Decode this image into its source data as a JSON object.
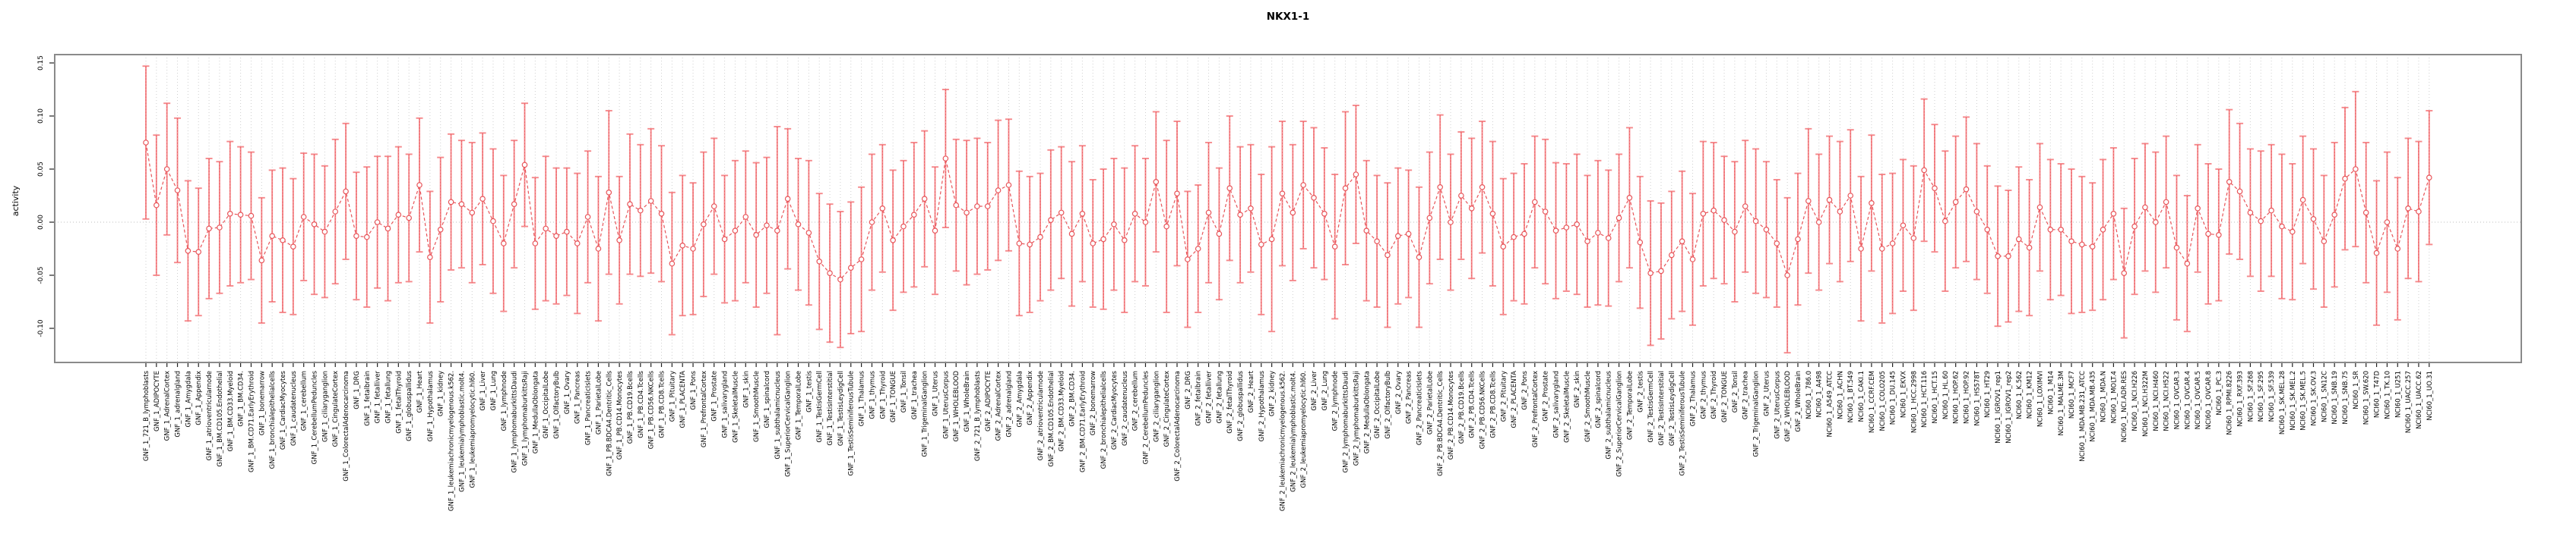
{
  "chart_data": {
    "type": "line",
    "subtype": "point-estimates-with-error-bars",
    "title": "NKX1-1",
    "ylabel": "activity",
    "xlabel": "",
    "ylim": [
      -0.132,
      0.158
    ],
    "yticks": [
      0.15,
      0.1,
      0.05,
      0.0,
      -0.05,
      -0.1
    ],
    "ytick_labels": [
      "0.15",
      "0.10",
      "0.05",
      "0.00",
      "-0.05",
      "-0.10"
    ],
    "grid": "dotted vertical line per category; dotted horizontal line at y=0",
    "legend_position": "none",
    "colors": {
      "error_bar": "#f5898c",
      "error_bar_dash_overlay": "#e8555a",
      "series_line": "#e8555a",
      "marker_stroke": "#e8555a",
      "marker_fill": "#ffffff",
      "gridline": "#cfcfcf",
      "zero_line": "#bdbdbd",
      "plot_border": "#8a8a8a",
      "axis_tick": "#222222",
      "text": "#000000",
      "background": "#ffffff"
    },
    "categories": [
      "GNF_1_721_B_lymphoblasts",
      "GNF_1_ADIPOCYTE",
      "GNF_1_AdrenalCortex",
      "GNF_1_adrenalgland",
      "GNF_1_Amygdala",
      "GNF_1_Appendix",
      "GNF_1_atrioventricularnode",
      "GNF_1_BM.CD105.Endothelial",
      "GNF_1_BM.CD33.Myeloid",
      "GNF_1_BM.CD34.",
      "GNF_1_BM.CD71.EarlyErythroid",
      "GNF_1_bonemarrow",
      "GNF_1_bronchialepithelialcells",
      "GNF_1_CardiacMyocytes",
      "GNF_1_caudatenucleus",
      "GNF_1_cerebellum",
      "GNF_1_CerebellumPeduncles",
      "GNF_1_ciliaryganglion",
      "GNF_1_CingulateCortex",
      "GNF_1_ColorectalAdenocarcinoma",
      "GNF_1_DRG",
      "GNF_1_fetalbrain",
      "GNF_1_fetalliver",
      "GNF_1_fetallung",
      "GNF_1_fetalThyroid",
      "GNF_1_globuspallidus",
      "GNF_1_Heart",
      "GNF_1_Hypothalamus",
      "GNF_1_kidney",
      "GNF_1_leukemiachronicmyelogenous.k562.",
      "GNF_1_leukemialymphoblastic.molt4.",
      "GNF_1_leukemiapromyelocytic.hl60.",
      "GNF_1_Liver",
      "GNF_1_Lung",
      "GNF_1_lymphnode",
      "GNF_1_lymphomaburkittsDaudi",
      "GNF_1_lymphomaburkittsRaji",
      "GNF_1_MedullaOblongata",
      "GNF_1_OccipitalLobe",
      "GNF_1_OlfactoryBulb",
      "GNF_1_Ovary",
      "GNF_1_Pancreas",
      "GNF_1_PancreaticIslets",
      "GNF_1_ParietalLobe",
      "GNF_1_PB.BDCA4.Dentritic_Cells",
      "GNF_1_PB.CD14.Monocytes",
      "GNF_1_PB.CD19.Bcells",
      "GNF_1_PB.CD4.Tcells",
      "GNF_1_PB.CD56.NKCells",
      "GNF_1_PB.CD8.Tcells",
      "GNF_1_Pituitary",
      "GNF_1_PLACENTA",
      "GNF_1_Pons",
      "GNF_1_PrefrontalCortex",
      "GNF_1_Prostate",
      "GNF_1_salivarygland",
      "GNF_1_SkeletalMuscle",
      "GNF_1_skin",
      "GNF_1_SmoothMuscle",
      "GNF_1_spinalcord",
      "GNF_1_subthalamicnucleus",
      "GNF_1_SuperiorCervicalGanglion",
      "GNF_1_TemporalLobe",
      "GNF_1_testis",
      "GNF_1_TestisGermCell",
      "GNF_1_TestisInterstitial",
      "GNF_1_TestisLeydigCell",
      "GNF_1_TestisSeminiferousTubule",
      "GNF_1_Thalamus",
      "GNF_1_thymus",
      "GNF_1_Thyroid",
      "GNF_1_TONGUE",
      "GNF_1_Tonsil",
      "GNF_1_trachea",
      "GNF_1_TrigeminalGanglion",
      "GNF_1_Uterus",
      "GNF_1_UterusCorpus",
      "GNF_1_WHOLEBLOOD",
      "GNF_1_WholeBrain",
      "GNF_2_721_B_lymphoblasts",
      "GNF_2_ADIPOCYTE",
      "GNF_2_AdrenalCortex",
      "GNF_2_adrenalgland",
      "GNF_2_Amygdala",
      "GNF_2_Appendix",
      "GNF_2_atrioventricularnode",
      "GNF_2_BM.CD105.Endothelial",
      "GNF_2_BM.CD33.Myeloid",
      "GNF_2_BM.CD34.",
      "GNF_2_BM.CD71.EarlyErythroid",
      "GNF_2_bonemarrow",
      "GNF_2_bronchialepithelialcells",
      "GNF_2_CardiacMyocytes",
      "GNF_2_caudatenucleus",
      "GNF_2_cerebellum",
      "GNF_2_CerebellumPeduncles",
      "GNF_2_ciliaryganglion",
      "GNF_2_CingulateCortex",
      "GNF_2_ColorectalAdenocarcinoma",
      "GNF_2_DRG",
      "GNF_2_fetalbrain",
      "GNF_2_fetalliver",
      "GNF_2_fetallung",
      "GNF_2_fetalThyroid",
      "GNF_2_globuspallidus",
      "GNF_2_Heart",
      "GNF_2_Hypothalamus",
      "GNF_2_kidney",
      "GNF_2_leukemiachronicmyelogenous.k562.",
      "GNF_2_leukemialymphoblastic.molt4.",
      "GNF_2_leukemiapromyelocytic.hl60.",
      "GNF_2_Liver",
      "GNF_2_Lung",
      "GNF_2_lymphnode",
      "GNF_2_lymphomaburkittsDaudi",
      "GNF_2_lymphomaburkittsRaji",
      "GNF_2_MedullaOblongata",
      "GNF_2_OccipitalLobe",
      "GNF_2_OlfactoryBulb",
      "GNF_2_Ovary",
      "GNF_2_Pancreas",
      "GNF_2_PancreaticIslets",
      "GNF_2_ParietalLobe",
      "GNF_2_PB.BDCA4.Dentritic_Cells",
      "GNF_2_PB.CD14.Monocytes",
      "GNF_2_PB.CD19.Bcells",
      "GNF_2_PB.CD4.Tcells",
      "GNF_2_PB.CD56.NKCells",
      "GNF_2_PB.CD8.Tcells",
      "GNF_2_Pituitary",
      "GNF_2_PLACENTA",
      "GNF_2_Pons",
      "GNF_2_PrefrontalCortex",
      "GNF_2_Prostate",
      "GNF_2_salivarygland",
      "GNF_2_SkeletalMuscle",
      "GNF_2_skin",
      "GNF_2_SmoothMuscle",
      "GNF_2_spinalcord",
      "GNF_2_subthalamicnucleus",
      "GNF_2_SuperiorCervicalGanglion",
      "GNF_2_TemporalLobe",
      "GNF_2_testis",
      "GNF_2_TestisGermCell",
      "GNF_2_TestisInterstitial",
      "GNF_2_TestisLeydigCell",
      "GNF_2_TestisSeminiferousTubule",
      "GNF_2_Thalamus",
      "GNF_2_thymus",
      "GNF_2_Thyroid",
      "GNF_2_TONGUE",
      "GNF_2_Tonsil",
      "GNF_2_trachea",
      "GNF_2_TrigeminalGanglion",
      "GNF_2_Uterus",
      "GNF_2_UterusCorpus",
      "GNF_2_WHOLEBLOOD",
      "GNF_2_WholeBrain",
      "NCI60_1_786.0",
      "NCI60_1_A498",
      "NCI60_1_A549_ATCC",
      "NCI60_1_ACHN",
      "NCI60_1_BT.549",
      "NCI60_1_CAKI.1",
      "NCI60_1_CCRF.CEM",
      "NCI60_1_COLO205",
      "NCI60_1_DU.145",
      "NCI60_1_EKVX",
      "NCI60_1_HCC.2998",
      "NCI60_1_HCT.116",
      "NCI60_1_HCT.15",
      "NCI60_1_HL.60",
      "NCI60_1_HOP.62",
      "NCI60_1_HOP.92",
      "NCI60_1_HS578T",
      "NCI60_1_HT29",
      "NCI60_1_IGROV1_rep1",
      "NCI60_1_IGROV1_rep2",
      "NCI60_1_K.562",
      "NCI60_1_KM12",
      "NCI60_1_LOXIMVI",
      "NCI60_1_M14",
      "NCI60_1_MALME.3M",
      "NCI60_1_MCF7",
      "NCI60_1_MDA.MB.231_ATCC",
      "NCI60_1_MDA.MB.435",
      "NCI60_1_MDA.N",
      "NCI60_1_MOLT.4",
      "NCI60_1_NCI.ADR.RES",
      "NCI60_1_NCI.H226",
      "NCI60_1_NCI.H322M",
      "NCI60_1_NCI.H460",
      "NCI60_1_NCI.H522",
      "NCI60_1_OVCAR.3",
      "NCI60_1_OVCAR.4",
      "NCI60_1_OVCAR.5",
      "NCI60_1_OVCAR.8",
      "NCI60_1_PC.3",
      "NCI60_1_RPMI.8226",
      "NCI60_1_RXF.393",
      "NCI60_1_SF.268",
      "NCI60_1_SF.295",
      "NCI60_1_SF.539",
      "NCI60_1_SK.MEL.28",
      "NCI60_1_SK.MEL.2",
      "NCI60_1_SK.MEL.5",
      "NCI60_1_SK.OV.3",
      "NCI60_1_SN12C",
      "NCI60_1_SNB.19",
      "NCI60_1_SNB.75",
      "NCI60_1_SR",
      "NCI60_1_SW.620",
      "NCI60_1_T47D",
      "NCI60_1_TK.10",
      "NCI60_1_U251",
      "NCI60_1_UACC.257",
      "NCI60_1_UACC.62",
      "NCI60_1_UO.31"
    ],
    "mean": [
      0.075,
      0.016,
      0.05,
      0.03,
      -0.027,
      -0.028,
      -0.006,
      -0.005,
      0.008,
      0.007,
      0.006,
      -0.036,
      -0.013,
      -0.017,
      -0.023,
      0.005,
      -0.002,
      -0.009,
      0.01,
      0.029,
      -0.013,
      -0.014,
      0.0,
      -0.006,
      0.007,
      0.004,
      0.035,
      -0.033,
      -0.007,
      0.019,
      0.017,
      0.009,
      0.022,
      0.001,
      -0.02,
      0.017,
      0.054,
      -0.02,
      -0.006,
      -0.013,
      -0.009,
      -0.02,
      0.005,
      -0.025,
      0.028,
      -0.017,
      0.017,
      0.011,
      0.02,
      0.008,
      -0.039,
      -0.022,
      -0.025,
      -0.002,
      0.015,
      -0.016,
      -0.008,
      0.005,
      -0.012,
      -0.003,
      -0.008,
      0.022,
      -0.002,
      -0.01,
      -0.037,
      -0.048,
      -0.054,
      -0.043,
      -0.035,
      0.0,
      0.013,
      -0.017,
      -0.004,
      0.007,
      0.022,
      -0.008,
      0.06,
      0.016,
      0.009,
      0.015,
      0.015,
      0.03,
      0.035,
      -0.02,
      -0.021,
      -0.014,
      0.002,
      0.009,
      -0.011,
      0.008,
      -0.02,
      -0.016,
      -0.002,
      -0.017,
      0.008,
      0.0,
      0.038,
      -0.004,
      0.027,
      -0.035,
      -0.025,
      0.009,
      -0.011,
      0.032,
      0.007,
      0.013,
      -0.021,
      -0.016,
      0.027,
      0.009,
      0.035,
      0.023,
      0.008,
      -0.023,
      0.032,
      0.045,
      -0.008,
      -0.018,
      -0.031,
      -0.013,
      -0.011,
      -0.033,
      0.004,
      0.033,
      0.0,
      0.025,
      0.013,
      0.033,
      0.008,
      -0.023,
      -0.014,
      -0.011,
      0.019,
      0.01,
      -0.008,
      -0.005,
      -0.002,
      -0.018,
      -0.01,
      -0.015,
      0.004,
      0.023,
      -0.019,
      -0.048,
      -0.046,
      -0.031,
      -0.018,
      -0.035,
      0.008,
      0.011,
      0.002,
      -0.009,
      0.015,
      0.001,
      -0.007,
      -0.02,
      -0.05,
      -0.016,
      0.02,
      0.0,
      0.021,
      0.01,
      0.025,
      -0.025,
      0.018,
      -0.025,
      -0.02,
      -0.003,
      -0.015,
      0.049,
      0.032,
      0.001,
      0.019,
      0.031,
      0.01,
      -0.007,
      -0.032,
      -0.032,
      -0.016,
      -0.024,
      0.014,
      -0.007,
      -0.007,
      -0.018,
      -0.021,
      -0.023,
      -0.007,
      0.008,
      -0.048,
      -0.004,
      0.014,
      0.0,
      0.019,
      -0.024,
      -0.039,
      0.013,
      -0.011,
      -0.012,
      0.038,
      0.029,
      0.009,
      0.001,
      0.011,
      -0.004,
      -0.009,
      0.021,
      0.003,
      -0.018,
      0.007,
      0.041,
      0.05,
      0.009,
      -0.029,
      0.0,
      -0.025,
      0.013,
      0.01,
      0.042
    ],
    "half_interval": [
      0.072,
      0.066,
      0.062,
      0.068,
      0.066,
      0.06,
      0.066,
      0.062,
      0.068,
      0.064,
      0.06,
      0.059,
      0.062,
      0.068,
      0.064,
      0.06,
      0.066,
      0.062,
      0.068,
      0.064,
      0.06,
      0.066,
      0.062,
      0.068,
      0.064,
      0.06,
      0.063,
      0.062,
      0.068,
      0.064,
      0.06,
      0.066,
      0.062,
      0.068,
      0.064,
      0.06,
      0.058,
      0.062,
      0.068,
      0.064,
      0.06,
      0.066,
      0.062,
      0.068,
      0.077,
      0.06,
      0.066,
      0.062,
      0.068,
      0.064,
      0.067,
      0.066,
      0.062,
      0.068,
      0.064,
      0.06,
      0.066,
      0.062,
      0.068,
      0.064,
      0.098,
      0.066,
      0.062,
      0.068,
      0.064,
      0.065,
      0.064,
      0.062,
      0.068,
      0.064,
      0.06,
      0.066,
      0.062,
      0.068,
      0.064,
      0.06,
      0.065,
      0.062,
      0.068,
      0.064,
      0.06,
      0.066,
      0.062,
      0.068,
      0.064,
      0.06,
      0.066,
      0.062,
      0.068,
      0.064,
      0.06,
      0.066,
      0.062,
      0.068,
      0.064,
      0.06,
      0.066,
      0.081,
      0.068,
      0.064,
      0.06,
      0.066,
      0.062,
      0.068,
      0.064,
      0.06,
      0.066,
      0.087,
      0.068,
      0.064,
      0.06,
      0.066,
      0.062,
      0.068,
      0.072,
      0.065,
      0.066,
      0.062,
      0.068,
      0.064,
      0.06,
      0.066,
      0.062,
      0.068,
      0.064,
      0.06,
      0.066,
      0.062,
      0.068,
      0.064,
      0.06,
      0.066,
      0.062,
      0.068,
      0.064,
      0.06,
      0.066,
      0.062,
      0.068,
      0.064,
      0.06,
      0.066,
      0.062,
      0.068,
      0.064,
      0.06,
      0.066,
      0.062,
      0.068,
      0.064,
      0.06,
      0.066,
      0.062,
      0.068,
      0.064,
      0.06,
      0.073,
      0.062,
      0.068,
      0.064,
      0.06,
      0.066,
      0.062,
      0.068,
      0.064,
      0.07,
      0.066,
      0.062,
      0.068,
      0.067,
      0.06,
      0.066,
      0.062,
      0.068,
      0.064,
      0.06,
      0.066,
      0.062,
      0.068,
      0.064,
      0.06,
      0.066,
      0.062,
      0.068,
      0.064,
      0.06,
      0.066,
      0.062,
      0.061,
      0.064,
      0.06,
      0.066,
      0.062,
      0.068,
      0.064,
      0.06,
      0.066,
      0.062,
      0.068,
      0.064,
      0.06,
      0.066,
      0.062,
      0.068,
      0.064,
      0.06,
      0.066,
      0.062,
      0.068,
      0.067,
      0.073,
      0.066,
      0.068,
      0.066,
      0.067,
      0.066,
      0.066,
      0.063
    ]
  }
}
